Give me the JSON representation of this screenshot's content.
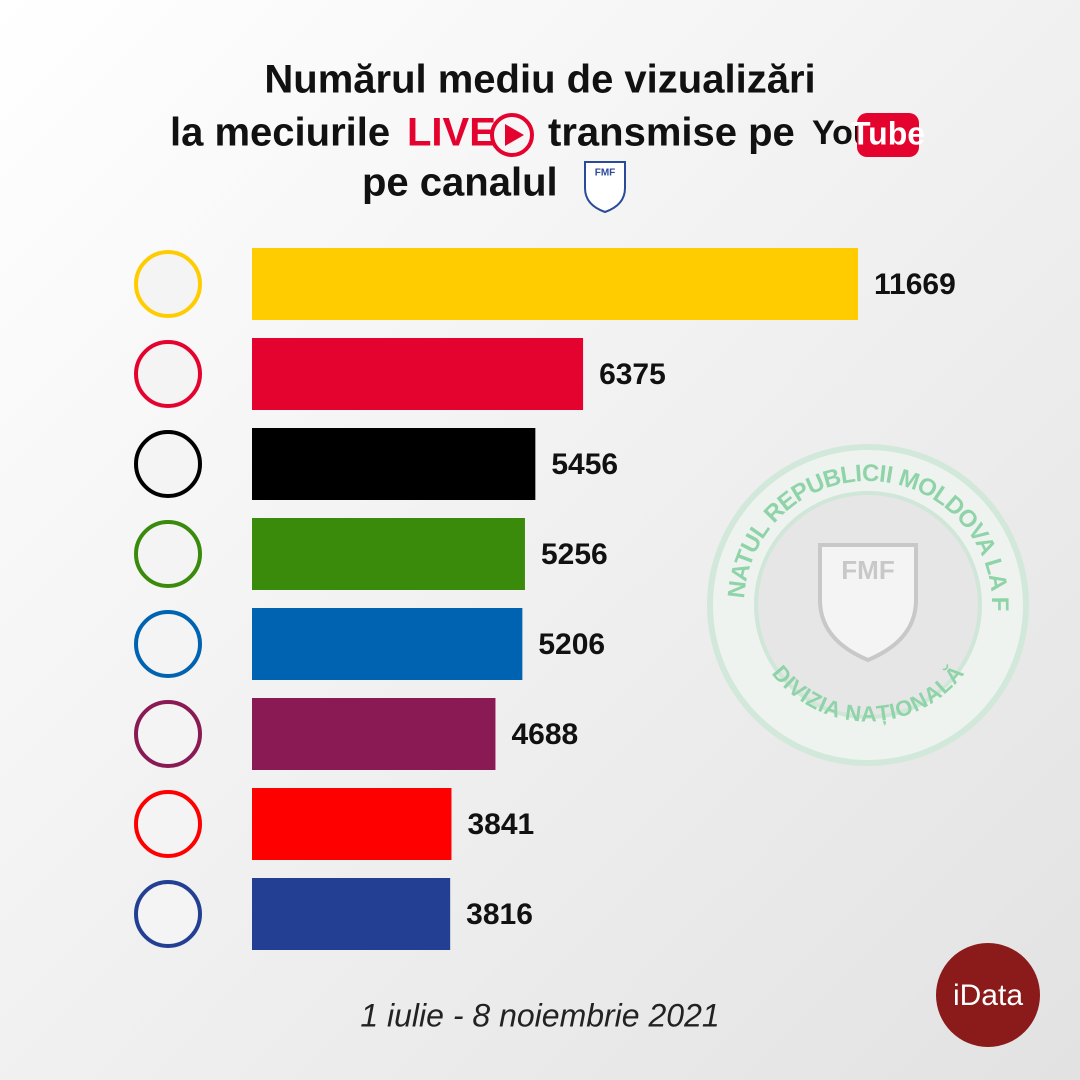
{
  "chart_data": {
    "type": "bar",
    "orientation": "horizontal",
    "title": "Numărul mediu de vizualizări",
    "subtitle_parts": [
      "la meciurile",
      "LIVE",
      "transmise pe",
      "You",
      "Tube"
    ],
    "subtitle_line2": "pe canalul",
    "channel_logo": "FMF",
    "categories": [
      null,
      null,
      null,
      null,
      null,
      null,
      null,
      null
    ],
    "values": [
      11669,
      6375,
      5456,
      5256,
      5206,
      4688,
      3841,
      3816
    ],
    "colors": [
      "#ffcc00",
      "#e4032e",
      "#000000",
      "#3a8a0c",
      "#0063b1",
      "#8a1a53",
      "#ff0000",
      "#233f94"
    ],
    "date_range": "1 iulie - 8 noiembrie 2021",
    "badge": {
      "ring_text": "CAMPIONATUL REPUBLICII MOLDOVA LA FOTBAL",
      "bottom_text": "DIVIZIA NAȚIONALĂ",
      "shield_text": "FMF"
    },
    "brand": "iData"
  }
}
